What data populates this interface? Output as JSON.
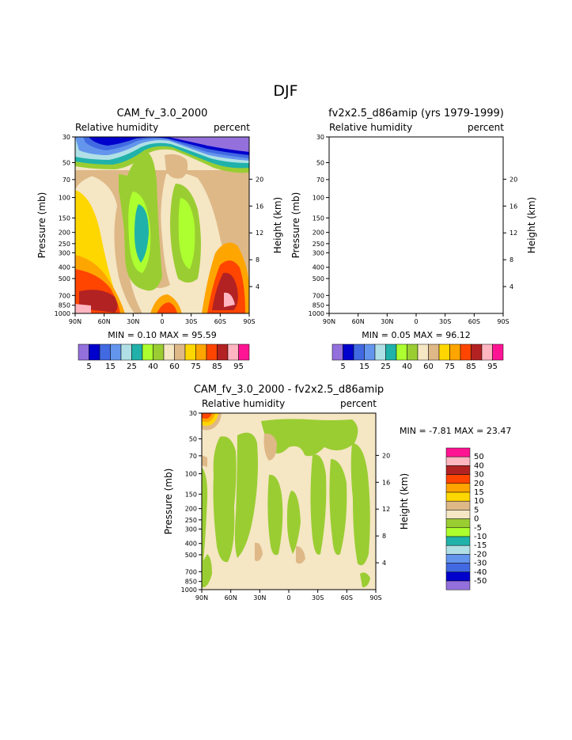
{
  "page_title": "DJF",
  "chart_data": [
    {
      "type": "heatmap",
      "title": "CAM_fv_3.0_2000",
      "subtitle_left": "Relative humidity",
      "subtitle_right": "percent",
      "ylabel": "Pressure (mb)",
      "ylabel_right": "Height (km)",
      "x_ticks": [
        "90N",
        "60N",
        "30N",
        "0",
        "30S",
        "60S",
        "90S"
      ],
      "y_ticks": [
        "30",
        "50",
        "70",
        "100",
        "150",
        "200",
        "250",
        "300",
        "400",
        "500",
        "700",
        "850",
        "1000"
      ],
      "y_right_ticks": [
        "20",
        "16",
        "12",
        "8",
        "4"
      ],
      "stats": "MIN =    0.10   MAX =   95.59",
      "colorbar_labels": [
        "5",
        "15",
        "25",
        "40",
        "60",
        "75",
        "85",
        "95"
      ],
      "levels": [
        5,
        10,
        15,
        20,
        25,
        30,
        35,
        40,
        50,
        60,
        65,
        70,
        75,
        80,
        85,
        90,
        95
      ]
    },
    {
      "type": "heatmap",
      "title": "fv2x2.5_d86amip (yrs 1979-1999)",
      "subtitle_left": "Relative humidity",
      "subtitle_right": "percent",
      "ylabel": "Pressure (mb)",
      "ylabel_right": "Height (km)",
      "x_ticks": [
        "90N",
        "60N",
        "30N",
        "0",
        "30S",
        "60S",
        "90S"
      ],
      "y_ticks": [
        "30",
        "50",
        "70",
        "100",
        "150",
        "200",
        "250",
        "300",
        "400",
        "500",
        "700",
        "850",
        "1000"
      ],
      "y_right_ticks": [
        "20",
        "16",
        "12",
        "8",
        "4"
      ],
      "stats": "MIN =    0.05   MAX =   96.12",
      "colorbar_labels": [
        "5",
        "15",
        "25",
        "40",
        "60",
        "75",
        "85",
        "95"
      ],
      "levels": [
        5,
        10,
        15,
        20,
        25,
        30,
        35,
        40,
        50,
        60,
        65,
        70,
        75,
        80,
        85,
        90,
        95
      ]
    },
    {
      "type": "heatmap",
      "title": "CAM_fv_3.0_2000 - fv2x2.5_d86amip",
      "subtitle_left": "Relative humidity",
      "subtitle_right": "percent",
      "ylabel": "Pressure (mb)",
      "ylabel_right": "Height (km)",
      "x_ticks": [
        "90N",
        "60N",
        "30N",
        "0",
        "30S",
        "60S",
        "90S"
      ],
      "y_ticks": [
        "30",
        "50",
        "70",
        "100",
        "150",
        "200",
        "250",
        "300",
        "400",
        "500",
        "700",
        "850",
        "1000"
      ],
      "y_right_ticks": [
        "20",
        "16",
        "12",
        "8",
        "4"
      ],
      "stats": "MIN =   -7.81   MAX =   23.47",
      "colorbar_labels": [
        "50",
        "40",
        "30",
        "20",
        "15",
        "10",
        "5",
        "0",
        "-5",
        "-10",
        "-15",
        "-20",
        "-30",
        "-40",
        "-50"
      ]
    }
  ],
  "colors": {
    "c01": "#9370DB",
    "c02": "#0000CD",
    "c03": "#4169E1",
    "c04": "#6495ED",
    "c05": "#B0E0E6",
    "c06": "#20B2AA",
    "c07": "#ADFF2F",
    "c08": "#9ACD32",
    "c09": "#F5E6C4",
    "c10": "#DEB887",
    "c11": "#FFD700",
    "c12": "#FFA500",
    "c13": "#FF4500",
    "c14": "#B22222",
    "c15": "#FFB6C1",
    "c16": "#FF1493"
  }
}
